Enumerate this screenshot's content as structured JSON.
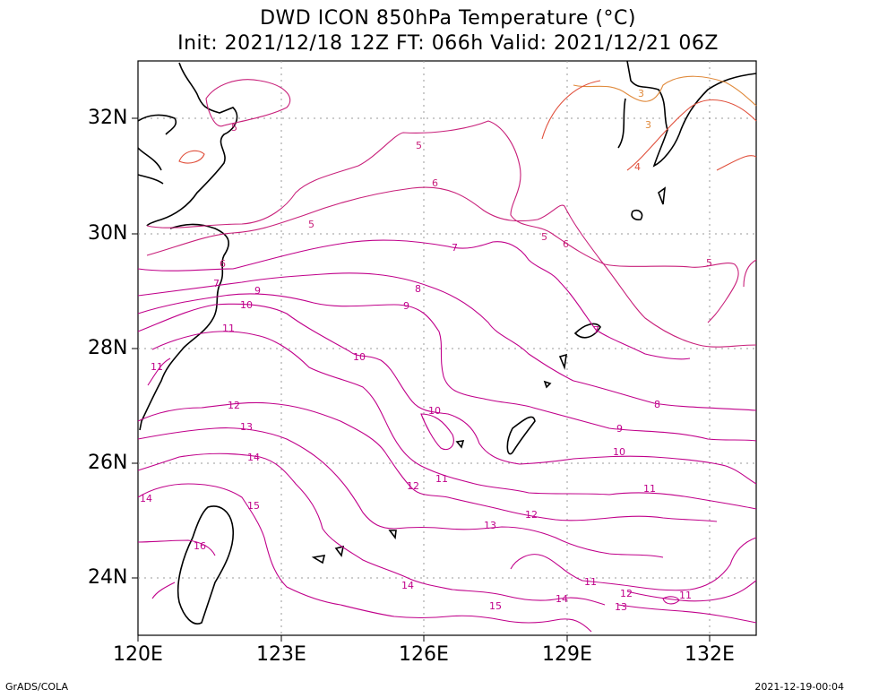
{
  "title": {
    "line1": "DWD ICON 850hPa Temperature (°C)",
    "line2": "Init: 2021/12/18 12Z  FT: 066h  Valid: 2021/12/21 06Z"
  },
  "axes": {
    "lat_labels": [
      "32N",
      "30N",
      "28N",
      "26N",
      "24N"
    ],
    "lon_labels": [
      "120E",
      "123E",
      "126E",
      "129E",
      "132E"
    ]
  },
  "footer": {
    "credit": "GrADS/COLA",
    "timestamp": "2021-12-19-00:04"
  },
  "map_data": {
    "extent": {
      "lon": [
        120,
        133
      ],
      "lat": [
        23,
        33
      ]
    },
    "contour_interval_degC": 1,
    "contour_colors": {
      "3": "#e08a3c",
      "4": "#e0503c",
      "5": "#c8207a",
      "6": "#c8207a",
      "7-16": "#c0008a"
    },
    "contour_labels": [
      "3",
      "4",
      "5",
      "6",
      "7",
      "8",
      "9",
      "10",
      "11",
      "12",
      "13",
      "14",
      "15",
      "16"
    ]
  }
}
